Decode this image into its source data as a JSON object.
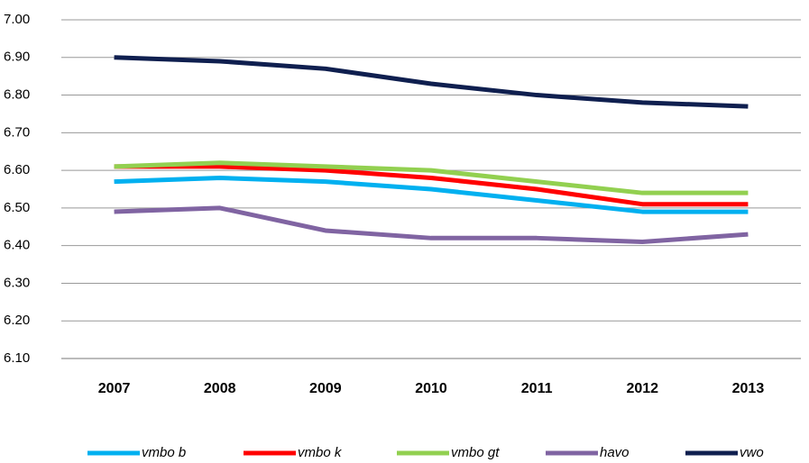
{
  "chart_data": {
    "type": "line",
    "categories": [
      "2007",
      "2008",
      "2009",
      "2010",
      "2011",
      "2012",
      "2013"
    ],
    "series": [
      {
        "name": "vmbo b",
        "color": "#00b0f0",
        "values": [
          6.57,
          6.58,
          6.57,
          6.55,
          6.52,
          6.49,
          6.49
        ]
      },
      {
        "name": "vmbo k",
        "color": "#ff0000",
        "values": [
          6.61,
          6.61,
          6.6,
          6.58,
          6.55,
          6.51,
          6.51
        ]
      },
      {
        "name": "vmbo gt",
        "color": "#92d050",
        "values": [
          6.61,
          6.62,
          6.61,
          6.6,
          6.57,
          6.54,
          6.54
        ]
      },
      {
        "name": "havo",
        "color": "#8064a2",
        "values": [
          6.49,
          6.5,
          6.44,
          6.42,
          6.42,
          6.41,
          6.43
        ]
      },
      {
        "name": "vwo",
        "color": "#0f1f4f",
        "values": [
          6.9,
          6.89,
          6.87,
          6.83,
          6.8,
          6.78,
          6.77
        ]
      }
    ],
    "ylim": [
      6.1,
      7.0
    ],
    "yticks": [
      {
        "value": 6.1,
        "label": "6.10"
      },
      {
        "value": 6.2,
        "label": "6.20"
      },
      {
        "value": 6.3,
        "label": "6.30"
      },
      {
        "value": 6.4,
        "label": "6.40"
      },
      {
        "value": 6.5,
        "label": "6.50"
      },
      {
        "value": 6.6,
        "label": "6.60"
      },
      {
        "value": 6.7,
        "label": "6.70"
      },
      {
        "value": 6.8,
        "label": "6.80"
      },
      {
        "value": 6.9,
        "label": "6.90"
      },
      {
        "value": 7.0,
        "label": "7.00"
      }
    ],
    "grid": true,
    "legend": "bottom"
  }
}
